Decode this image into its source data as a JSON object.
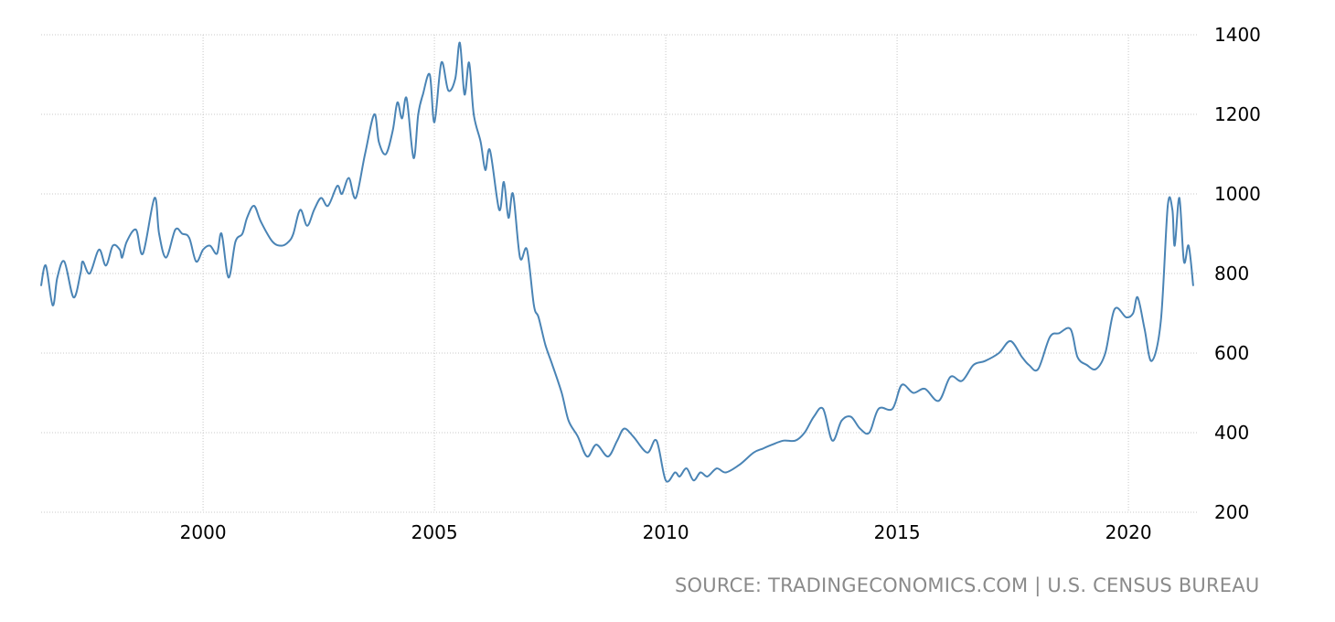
{
  "chart_data": {
    "type": "line",
    "title": "",
    "xlabel": "",
    "ylabel": "",
    "xlim": [
      1996.5,
      2021.5
    ],
    "ylim": [
      200,
      1400
    ],
    "x_ticks": [
      2000,
      2005,
      2010,
      2015,
      2020
    ],
    "x_tick_labels": [
      "2000",
      "2005",
      "2010",
      "2015",
      "2020"
    ],
    "y_ticks": [
      200,
      400,
      600,
      800,
      1000,
      1200,
      1400
    ],
    "y_tick_labels": [
      "200",
      "400",
      "600",
      "800",
      "1000",
      "1200",
      "1400"
    ],
    "grid": true,
    "y_axis_side": "right",
    "line_color": "#4a84b5",
    "grid_color": "#c8c8c8",
    "series": [
      {
        "x": [
          1996.5,
          1996.6,
          1996.75,
          1996.85,
          1997.0,
          1997.2,
          1997.35,
          1997.4,
          1997.55,
          1997.75,
          1997.9,
          1998.05,
          1998.2,
          1998.25,
          1998.35,
          1998.55,
          1998.7,
          1998.95,
          1999.05,
          1999.2,
          1999.4,
          1999.55,
          1999.7,
          1999.85,
          2000.0,
          2000.15,
          2000.3,
          2000.4,
          2000.55,
          2000.7,
          2000.85,
          2000.95,
          2001.1,
          2001.25,
          2001.5,
          2001.7,
          2001.85,
          2001.95,
          2002.1,
          2002.25,
          2002.4,
          2002.55,
          2002.7,
          2002.9,
          2003.0,
          2003.15,
          2003.3,
          2003.5,
          2003.7,
          2003.8,
          2003.95,
          2004.1,
          2004.2,
          2004.3,
          2004.4,
          2004.55,
          2004.65,
          2004.75,
          2004.9,
          2005.0,
          2005.15,
          2005.3,
          2005.45,
          2005.55,
          2005.65,
          2005.75,
          2005.85,
          2006.0,
          2006.1,
          2006.2,
          2006.4,
          2006.5,
          2006.6,
          2006.7,
          2006.85,
          2007.0,
          2007.15,
          2007.25,
          2007.4,
          2007.55,
          2007.75,
          2007.9,
          2008.1,
          2008.3,
          2008.5,
          2008.75,
          2008.95,
          2009.1,
          2009.3,
          2009.6,
          2009.8,
          2010.0,
          2010.2,
          2010.3,
          2010.45,
          2010.6,
          2010.75,
          2010.9,
          2011.1,
          2011.3,
          2011.6,
          2011.9,
          2012.1,
          2012.3,
          2012.55,
          2012.8,
          2013.0,
          2013.2,
          2013.4,
          2013.6,
          2013.8,
          2014.0,
          2014.2,
          2014.4,
          2014.6,
          2014.9,
          2015.1,
          2015.35,
          2015.6,
          2015.9,
          2016.15,
          2016.4,
          2016.65,
          2016.9,
          2017.2,
          2017.45,
          2017.7,
          2017.85,
          2018.05,
          2018.3,
          2018.5,
          2018.75,
          2018.9,
          2019.1,
          2019.3,
          2019.5,
          2019.7,
          2019.95,
          2020.1,
          2020.2,
          2020.35,
          2020.5,
          2020.7,
          2020.85,
          2020.95,
          2021.0,
          2021.1,
          2021.2,
          2021.3,
          2021.4
        ],
        "values": [
          770,
          820,
          720,
          790,
          830,
          740,
          800,
          830,
          800,
          860,
          820,
          870,
          860,
          840,
          880,
          910,
          850,
          990,
          900,
          840,
          910,
          900,
          890,
          830,
          860,
          870,
          850,
          900,
          790,
          880,
          900,
          940,
          970,
          930,
          880,
          870,
          880,
          900,
          960,
          920,
          960,
          990,
          970,
          1020,
          1000,
          1040,
          990,
          1100,
          1200,
          1130,
          1100,
          1160,
          1230,
          1190,
          1240,
          1090,
          1200,
          1250,
          1300,
          1180,
          1330,
          1260,
          1290,
          1380,
          1250,
          1330,
          1200,
          1130,
          1060,
          1110,
          960,
          1030,
          940,
          1000,
          840,
          860,
          720,
          690,
          620,
          570,
          500,
          430,
          390,
          340,
          370,
          340,
          380,
          410,
          390,
          350,
          380,
          280,
          300,
          290,
          310,
          280,
          300,
          290,
          310,
          300,
          320,
          350,
          360,
          370,
          380,
          380,
          400,
          440,
          460,
          380,
          430,
          440,
          410,
          400,
          460,
          460,
          520,
          500,
          510,
          480,
          540,
          530,
          570,
          580,
          600,
          630,
          590,
          570,
          560,
          640,
          650,
          660,
          590,
          570,
          560,
          600,
          710,
          690,
          700,
          740,
          660,
          580,
          680,
          970,
          960,
          870,
          990,
          830,
          870,
          770
        ]
      }
    ]
  },
  "source_text": "SOURCE: TRADINGECONOMICS.COM | U.S. CENSUS BUREAU"
}
